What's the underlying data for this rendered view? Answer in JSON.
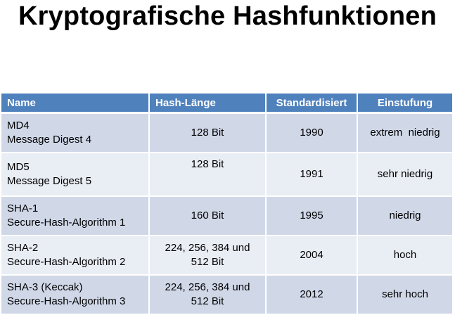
{
  "title": "Kryptografische Hashfunktionen",
  "table": {
    "headers": [
      "Name",
      "Hash-Länge",
      "Standardisiert",
      "Einstufung"
    ],
    "rows": [
      {
        "name": "MD4",
        "full": "Message Digest 4",
        "length": "128 Bit",
        "length2": "",
        "year": "1990",
        "rating": "extrem  niedrig"
      },
      {
        "name": "MD5",
        "full": "Message Digest 5",
        "length": "128 Bit",
        "length2": "",
        "year": "1991",
        "rating": "sehr niedrig"
      },
      {
        "name": "SHA-1",
        "full": "Secure-Hash-Algorithm 1",
        "length": "160 Bit",
        "length2": "",
        "year": "1995",
        "rating": "niedrig"
      },
      {
        "name": "SHA-2",
        "full": "Secure-Hash-Algorithm 2",
        "length": "224, 256, 384 und",
        "length2": "512 Bit",
        "year": "2004",
        "rating": "hoch"
      },
      {
        "name": "SHA-3 (Keccak)",
        "full": "Secure-Hash-Algorithm 3",
        "length": "224, 256, 384 und",
        "length2": "512 Bit",
        "year": "2012",
        "rating": "sehr hoch"
      }
    ]
  }
}
